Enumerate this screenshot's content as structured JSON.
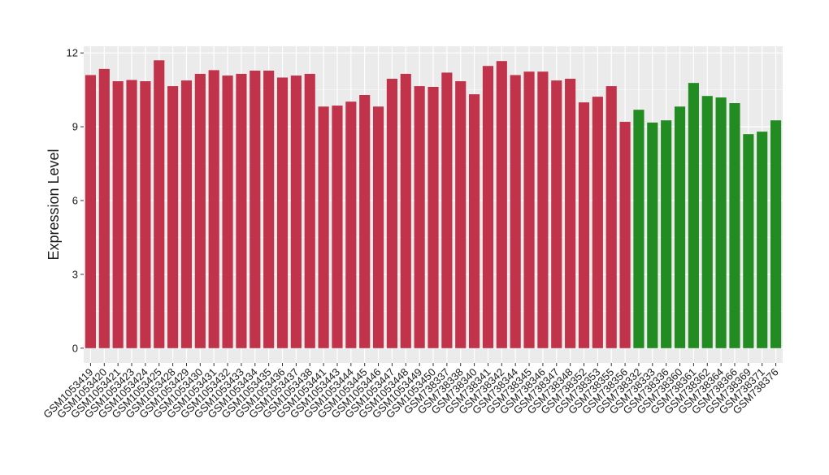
{
  "chart_data": {
    "type": "bar",
    "y_label": "Expression Level",
    "categories": [
      "GSM1053419",
      "GSM1053420",
      "GSM1053421",
      "GSM1053423",
      "GSM1053424",
      "GSM1053425",
      "GSM1053428",
      "GSM1053429",
      "GSM1053430",
      "GSM1053431",
      "GSM1053432",
      "GSM1053433",
      "GSM1053434",
      "GSM1053435",
      "GSM1053436",
      "GSM1053437",
      "GSM1053438",
      "GSM1053441",
      "GSM1053443",
      "GSM1053444",
      "GSM1053445",
      "GSM1053446",
      "GSM1053447",
      "GSM1053448",
      "GSM1053449",
      "GSM1053450",
      "GSM738337",
      "GSM738338",
      "GSM738340",
      "GSM738341",
      "GSM738342",
      "GSM738344",
      "GSM738345",
      "GSM738346",
      "GSM738347",
      "GSM738348",
      "GSM738352",
      "GSM738353",
      "GSM738355",
      "GSM738356",
      "GSM738332",
      "GSM738333",
      "GSM738336",
      "GSM738360",
      "GSM738361",
      "GSM738362",
      "GSM738364",
      "GSM738366",
      "GSM738369",
      "GSM738371",
      "GSM738376"
    ],
    "values": [
      11.1,
      11.35,
      10.85,
      10.9,
      10.85,
      11.7,
      10.65,
      10.88,
      11.15,
      11.3,
      11.08,
      11.15,
      11.28,
      11.28,
      11.0,
      11.08,
      11.15,
      9.82,
      9.86,
      10.02,
      10.29,
      9.82,
      10.95,
      11.15,
      10.65,
      10.62,
      11.2,
      10.85,
      10.32,
      11.47,
      11.67,
      11.1,
      11.24,
      11.24,
      10.88,
      10.95,
      9.99,
      10.22,
      10.65,
      9.2,
      9.69,
      9.17,
      9.26,
      9.82,
      10.78,
      10.25,
      10.19,
      9.96,
      8.7,
      8.8,
      9.26
    ],
    "colors": [
      "#c0334a",
      "#c0334a",
      "#c0334a",
      "#c0334a",
      "#c0334a",
      "#c0334a",
      "#c0334a",
      "#c0334a",
      "#c0334a",
      "#c0334a",
      "#c0334a",
      "#c0334a",
      "#c0334a",
      "#c0334a",
      "#c0334a",
      "#c0334a",
      "#c0334a",
      "#c0334a",
      "#c0334a",
      "#c0334a",
      "#c0334a",
      "#c0334a",
      "#c0334a",
      "#c0334a",
      "#c0334a",
      "#c0334a",
      "#c0334a",
      "#c0334a",
      "#c0334a",
      "#c0334a",
      "#c0334a",
      "#c0334a",
      "#c0334a",
      "#c0334a",
      "#c0334a",
      "#c0334a",
      "#c0334a",
      "#c0334a",
      "#c0334a",
      "#c0334a",
      "#228b22",
      "#228b22",
      "#228b22",
      "#228b22",
      "#228b22",
      "#228b22",
      "#228b22",
      "#228b22",
      "#228b22",
      "#228b22",
      "#228b22"
    ],
    "ylim": [
      -0.6,
      12.27
    ],
    "yticks": [
      0,
      3,
      6,
      9,
      12
    ],
    "grid": true
  }
}
